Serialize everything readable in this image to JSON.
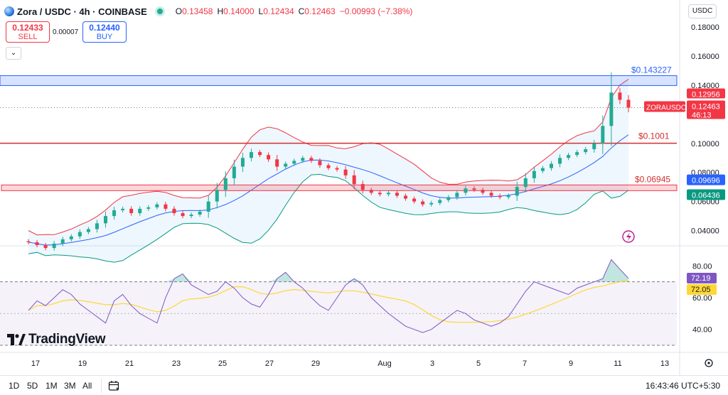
{
  "header": {
    "symbol": "Zora / USDC · 4h · COINBASE",
    "open_label": "O",
    "open": "0.13458",
    "high_label": "H",
    "high": "0.14000",
    "low_label": "L",
    "low": "0.12434",
    "close_label": "C",
    "close": "0.12463",
    "change": "−0.00993 (−7.38%)"
  },
  "trade": {
    "sell_price": "0.12433",
    "sell_label": "SELL",
    "spread": "0.00007",
    "buy_price": "0.12440",
    "buy_label": "BUY"
  },
  "currency_button": "USDC",
  "price_axis": {
    "ticks": [
      "0.18000",
      "0.16000",
      "0.14000",
      "0.12000",
      "0.10000",
      "0.08000",
      "0.06000",
      "0.04000"
    ]
  },
  "levels": {
    "resistance_zone_label": "$0.143227",
    "mid_line_label": "$0.1001",
    "support_zone_label": "$0.06945"
  },
  "price_tags": {
    "high_tag": "0.12956",
    "symbol_tag": "ZORAUSDC",
    "last_price": "0.12463",
    "countdown": "46:13",
    "bb_upper": "0.09696",
    "bb_lower": "0.06436"
  },
  "rsi": {
    "ticks": [
      "80.00",
      "60.00",
      "40.00"
    ],
    "rsi_value": "72.19",
    "ma_value": "72.05"
  },
  "time_axis": {
    "labels": [
      "17",
      "19",
      "21",
      "23",
      "25",
      "27",
      "29",
      "Aug",
      "3",
      "5",
      "7",
      "9",
      "11",
      "13"
    ]
  },
  "bottom_bar": {
    "ranges": [
      "1D",
      "5D",
      "1M",
      "3M",
      "All"
    ],
    "clock": "16:43:46 UTC+5:30"
  },
  "branding": {
    "logo_text": "TradingView"
  },
  "colors": {
    "up": "#22ab94",
    "down": "#f23645",
    "accent": "#2962ff",
    "bb_basis": "#2962ff",
    "bb_upper": "#f23645",
    "bb_lower": "#089981",
    "rsi_line": "#7e57c2",
    "rsi_ma": "#fdd835"
  },
  "chart_data": {
    "type": "candlestick",
    "timeframe": "4h",
    "x": [
      "17",
      "19",
      "21",
      "23",
      "25",
      "27",
      "29",
      "Aug",
      "3",
      "5",
      "7",
      "9",
      "11",
      "13"
    ],
    "close_path": [
      0.032,
      0.03,
      0.028,
      0.031,
      0.034,
      0.036,
      0.039,
      0.041,
      0.045,
      0.05,
      0.054,
      0.055,
      0.052,
      0.055,
      0.056,
      0.058,
      0.055,
      0.052,
      0.05,
      0.051,
      0.053,
      0.06,
      0.068,
      0.076,
      0.084,
      0.09,
      0.094,
      0.092,
      0.089,
      0.084,
      0.086,
      0.088,
      0.09,
      0.088,
      0.085,
      0.083,
      0.082,
      0.078,
      0.072,
      0.068,
      0.066,
      0.065,
      0.066,
      0.064,
      0.062,
      0.06,
      0.058,
      0.059,
      0.061,
      0.063,
      0.066,
      0.069,
      0.068,
      0.066,
      0.064,
      0.063,
      0.064,
      0.07,
      0.076,
      0.081,
      0.083,
      0.086,
      0.09,
      0.092,
      0.094,
      0.096,
      0.1,
      0.112,
      0.135,
      0.13,
      0.1246
    ],
    "levels": [
      0.143227,
      0.1001,
      0.06945
    ],
    "last_price": 0.12463,
    "ylim": [
      0.03,
      0.185
    ],
    "rsi_close_path": [
      52,
      58,
      55,
      60,
      65,
      62,
      56,
      52,
      48,
      44,
      58,
      62,
      55,
      50,
      47,
      44,
      60,
      72,
      75,
      68,
      65,
      62,
      64,
      70,
      66,
      60,
      56,
      54,
      62,
      72,
      76,
      70,
      66,
      60,
      55,
      52,
      60,
      68,
      72,
      68,
      60,
      55,
      50,
      46,
      42,
      40,
      38,
      40,
      44,
      48,
      52,
      50,
      46,
      44,
      42,
      44,
      48,
      56,
      64,
      70,
      68,
      66,
      64,
      62,
      66,
      68,
      70,
      72,
      84,
      78,
      72.19
    ],
    "rsi_ylim": [
      30,
      90
    ]
  }
}
